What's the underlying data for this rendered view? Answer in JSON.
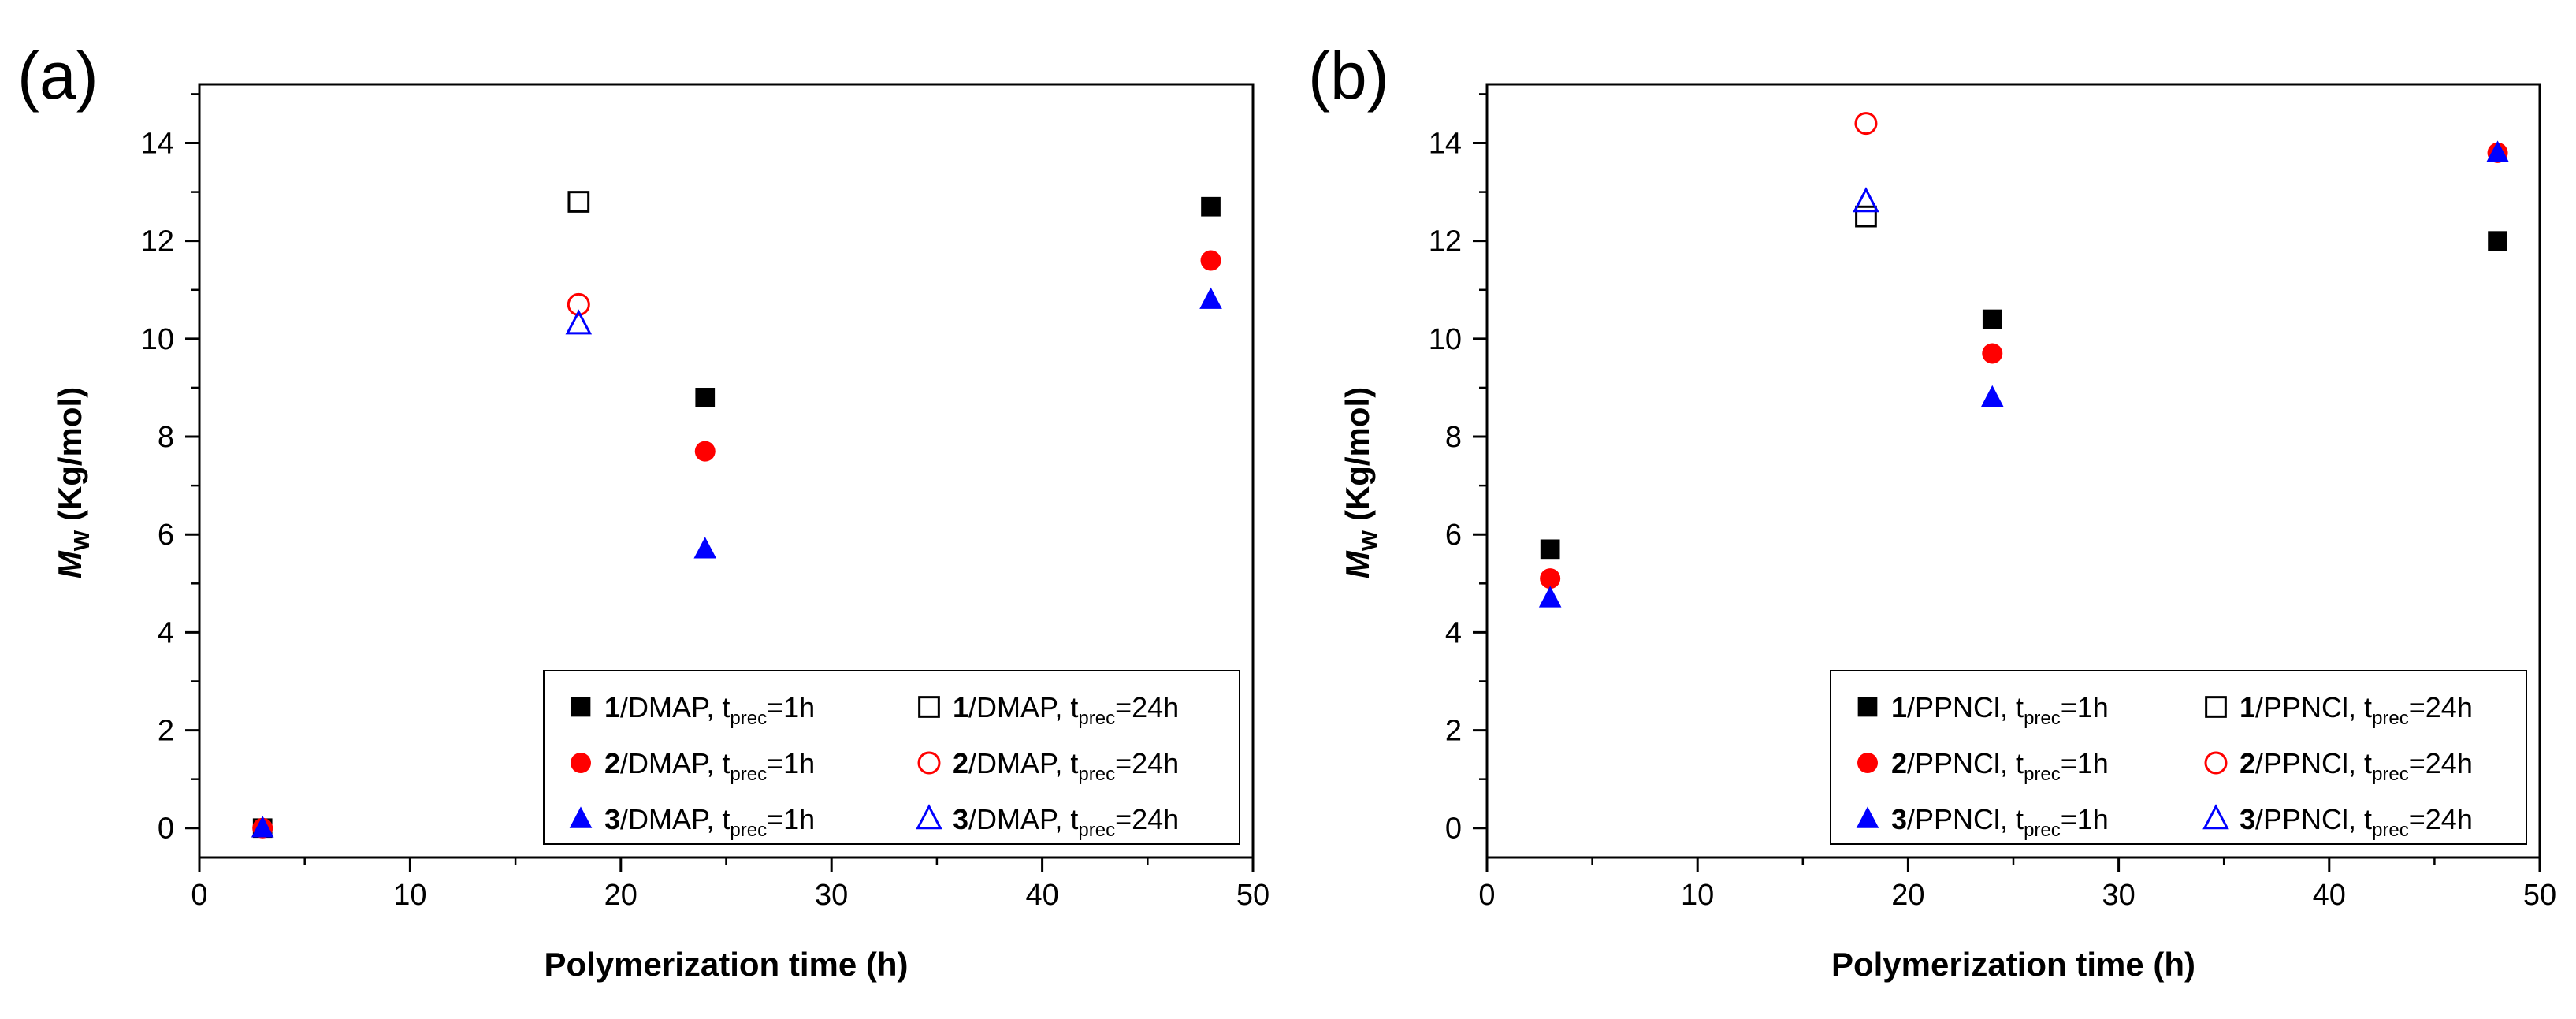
{
  "chart_data": [
    {
      "panel_label": "(a)",
      "type": "scatter",
      "xlabel": "Polymerization time (h)",
      "ylabel_main": "M",
      "ylabel_sub": "W",
      "ylabel_rest": " (Kg/mol)",
      "xlim": [
        0,
        50
      ],
      "ylim": [
        -0.6,
        15.2
      ],
      "xticks": [
        0,
        10,
        20,
        30,
        40,
        50
      ],
      "yticks": [
        0,
        2,
        4,
        6,
        8,
        10,
        12,
        14
      ],
      "grid": false,
      "legend_position": "bottom-right",
      "series": [
        {
          "prefix": "1",
          "mid": "/DMAP, t",
          "sub": "prec",
          "suffix": "=1h",
          "marker": "square",
          "filled": true,
          "color": "#000000",
          "x": [
            3,
            24,
            48
          ],
          "y": [
            0,
            8.8,
            12.7
          ]
        },
        {
          "prefix": "1",
          "mid": "/DMAP, t",
          "sub": "prec",
          "suffix": "=24h",
          "marker": "square",
          "filled": false,
          "color": "#000000",
          "x": [
            18
          ],
          "y": [
            12.8
          ]
        },
        {
          "prefix": "2",
          "mid": "/DMAP, t",
          "sub": "prec",
          "suffix": "=1h",
          "marker": "circle",
          "filled": true,
          "color": "#ff0000",
          "x": [
            3,
            24,
            48
          ],
          "y": [
            0,
            7.7,
            11.6
          ]
        },
        {
          "prefix": "2",
          "mid": "/DMAP, t",
          "sub": "prec",
          "suffix": "=24h",
          "marker": "circle",
          "filled": false,
          "color": "#ff0000",
          "x": [
            18
          ],
          "y": [
            10.7
          ]
        },
        {
          "prefix": "3",
          "mid": "/DMAP, t",
          "sub": "prec",
          "suffix": "=1h",
          "marker": "triangle",
          "filled": true,
          "color": "#0000ff",
          "x": [
            3,
            24,
            48
          ],
          "y": [
            0,
            5.7,
            10.8
          ]
        },
        {
          "prefix": "3",
          "mid": "/DMAP, t",
          "sub": "prec",
          "suffix": "=24h",
          "marker": "triangle",
          "filled": false,
          "color": "#0000ff",
          "x": [
            18
          ],
          "y": [
            10.3
          ]
        }
      ]
    },
    {
      "panel_label": "(b)",
      "type": "scatter",
      "xlabel": "Polymerization time (h)",
      "ylabel_main": "M",
      "ylabel_sub": "W",
      "ylabel_rest": " (Kg/mol)",
      "xlim": [
        0,
        50
      ],
      "ylim": [
        -0.6,
        15.2
      ],
      "xticks": [
        0,
        10,
        20,
        30,
        40,
        50
      ],
      "yticks": [
        0,
        2,
        4,
        6,
        8,
        10,
        12,
        14
      ],
      "grid": false,
      "legend_position": "bottom-right",
      "series": [
        {
          "prefix": "1",
          "mid": "/PPNCl, t",
          "sub": "prec",
          "suffix": "=1h",
          "marker": "square",
          "filled": true,
          "color": "#000000",
          "x": [
            3,
            24,
            48
          ],
          "y": [
            5.7,
            10.4,
            12.0
          ]
        },
        {
          "prefix": "1",
          "mid": "/PPNCl, t",
          "sub": "prec",
          "suffix": "=24h",
          "marker": "square",
          "filled": false,
          "color": "#000000",
          "x": [
            18
          ],
          "y": [
            12.5
          ]
        },
        {
          "prefix": "2",
          "mid": "/PPNCl, t",
          "sub": "prec",
          "suffix": "=1h",
          "marker": "circle",
          "filled": true,
          "color": "#ff0000",
          "x": [
            3,
            24,
            48
          ],
          "y": [
            5.1,
            9.7,
            13.8
          ]
        },
        {
          "prefix": "2",
          "mid": "/PPNCl, t",
          "sub": "prec",
          "suffix": "=24h",
          "marker": "circle",
          "filled": false,
          "color": "#ff0000",
          "x": [
            18
          ],
          "y": [
            14.4
          ]
        },
        {
          "prefix": "3",
          "mid": "/PPNCl, t",
          "sub": "prec",
          "suffix": "=1h",
          "marker": "triangle",
          "filled": true,
          "color": "#0000ff",
          "x": [
            3,
            24,
            48
          ],
          "y": [
            4.7,
            8.8,
            13.8
          ]
        },
        {
          "prefix": "3",
          "mid": "/PPNCl, t",
          "sub": "prec",
          "suffix": "=24h",
          "marker": "triangle",
          "filled": false,
          "color": "#0000ff",
          "x": [
            18
          ],
          "y": [
            12.8
          ]
        }
      ]
    }
  ]
}
